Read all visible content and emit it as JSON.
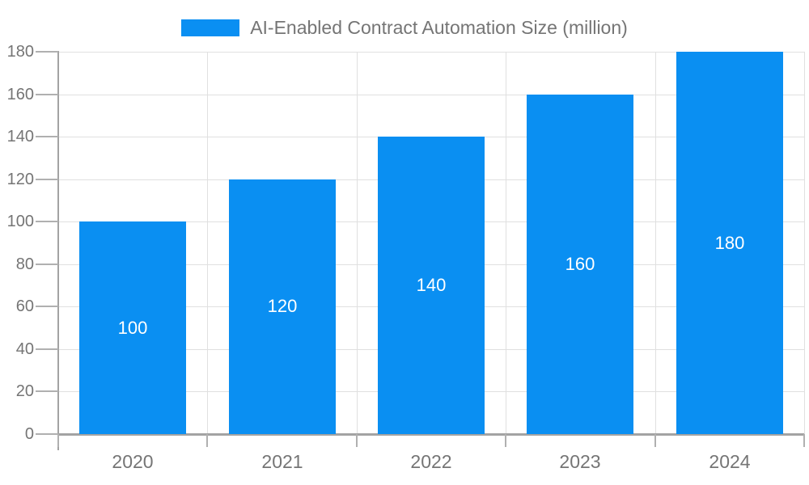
{
  "legend": {
    "label": "AI-Enabled Contract Automation Size (million)"
  },
  "chart_data": {
    "type": "bar",
    "title": "",
    "xlabel": "",
    "ylabel": "",
    "categories": [
      "2020",
      "2021",
      "2022",
      "2023",
      "2024"
    ],
    "series": [
      {
        "name": "AI-Enabled Contract Automation Size (million)",
        "values": [
          100,
          120,
          140,
          160,
          180
        ]
      }
    ],
    "bar_labels": [
      "100",
      "120",
      "140",
      "160",
      "180"
    ],
    "ylim": [
      0,
      180
    ],
    "yticks": [
      0,
      20,
      40,
      60,
      80,
      100,
      120,
      140,
      160,
      180
    ],
    "grid": "horizontal and vertical light gray gridlines",
    "legend_position": "top-center"
  },
  "colors": {
    "bar": "#0a8ff2",
    "grid": "#e0e0e0",
    "axis": "#a3a3a3",
    "tick": "#b0b0b0",
    "text": "#757575",
    "bar_label": "#ffffff",
    "background": "#ffffff"
  }
}
